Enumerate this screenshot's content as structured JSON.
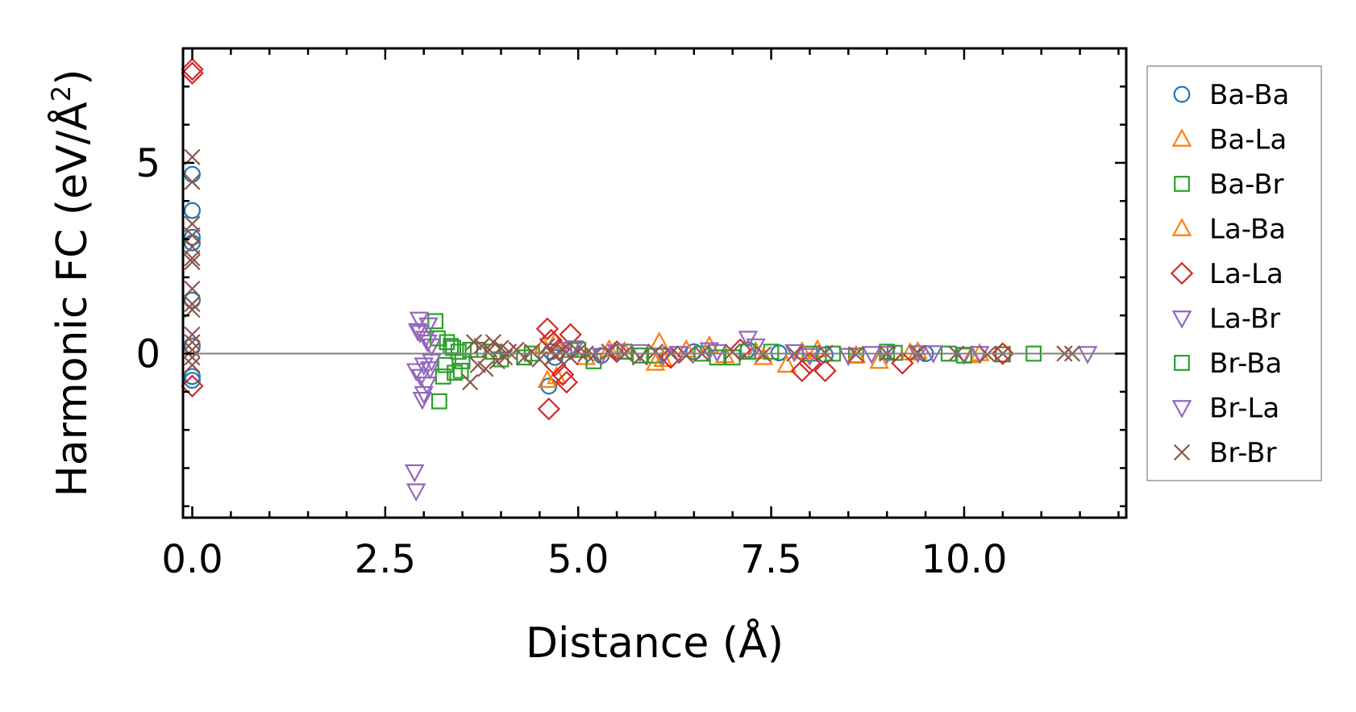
{
  "chart_data": {
    "type": "scatter",
    "title": "",
    "xlabel": "Distance (Å)",
    "ylabel_main": "Harmonic FC (eV/Å",
    "ylabel_sup": "2",
    "ylabel_close": ")",
    "xlim": [
      -0.12,
      12.1
    ],
    "ylim": [
      -4.3,
      8.0
    ],
    "xticks": [
      0.0,
      2.5,
      5.0,
      7.5,
      10.0
    ],
    "xtick_labels": [
      "0.0",
      "2.5",
      "5.0",
      "7.5",
      "10.0"
    ],
    "yticks": [
      0,
      5
    ],
    "ytick_labels": [
      "0",
      "5"
    ],
    "legend_position": "outside-right",
    "series": [
      {
        "name": "Ba-Ba",
        "marker": "circle",
        "color": "#1f77b4",
        "x": [
          0,
          0,
          0,
          0,
          0,
          0,
          0,
          0,
          4.62,
          4.65,
          4.7,
          5.3,
          6.5,
          7.2,
          7.6,
          8.2,
          9.5
        ],
        "y": [
          4.7,
          3.75,
          3.05,
          2.9,
          -0.6,
          -0.7,
          1.4,
          0.2,
          -0.85,
          0.05,
          -0.1,
          -0.05,
          0.05,
          0.1,
          0.02,
          -0.03,
          0.0
        ]
      },
      {
        "name": "Ba-La",
        "marker": "triangle-up",
        "color": "#ff7f0e",
        "x": [
          4.6,
          4.7,
          5.1,
          5.6,
          6.0,
          6.05,
          6.4,
          6.9,
          7.3,
          7.7,
          8.1,
          8.9,
          9.3,
          10.1
        ],
        "y": [
          -0.7,
          0.3,
          -0.1,
          0.05,
          -0.25,
          0.3,
          0.1,
          -0.05,
          0.05,
          -0.3,
          0.1,
          -0.2,
          0.02,
          -0.05
        ]
      },
      {
        "name": "Ba-Br",
        "marker": "square",
        "color": "#2ca02c",
        "x": [
          3.15,
          3.2,
          3.25,
          3.3,
          3.35,
          3.4,
          3.45,
          3.5,
          3.7,
          4.0,
          4.4,
          4.9,
          5.2,
          5.6,
          6.0,
          6.6,
          7.0,
          7.5,
          8.0,
          8.6,
          9.1,
          9.8,
          10.5,
          10.9
        ],
        "y": [
          0.85,
          -1.25,
          -0.6,
          0.3,
          0.2,
          -0.5,
          0.05,
          -0.2,
          0.1,
          -0.15,
          0.0,
          0.1,
          -0.2,
          0.05,
          -0.05,
          0.0,
          -0.1,
          0.05,
          0.0,
          -0.05,
          0.02,
          0.0,
          -0.02,
          0.0
        ]
      },
      {
        "name": "La-Ba",
        "marker": "triangle-up",
        "color": "#ff7f0e",
        "x": [
          4.55,
          4.72,
          5.4,
          6.1,
          6.7,
          7.4,
          7.9,
          8.6,
          9.4,
          10.2
        ],
        "y": [
          0.2,
          -0.6,
          0.1,
          -0.15,
          0.2,
          -0.1,
          0.05,
          -0.05,
          0.05,
          0.0
        ]
      },
      {
        "name": "La-La",
        "marker": "diamond",
        "color": "#d62728",
        "x": [
          0,
          0,
          0,
          4.6,
          4.62,
          4.65,
          4.7,
          4.75,
          4.8,
          4.85,
          4.9,
          5.5,
          6.2,
          7.1,
          7.9,
          8.0,
          8.2,
          9.2,
          10.5
        ],
        "y": [
          7.45,
          7.35,
          -0.85,
          0.65,
          -1.45,
          0.35,
          -0.3,
          0.1,
          -0.55,
          -0.75,
          0.5,
          0.05,
          -0.1,
          0.1,
          -0.45,
          -0.25,
          -0.45,
          -0.25,
          0.0
        ]
      },
      {
        "name": "La-Br",
        "marker": "triangle-down",
        "color": "#9467bd",
        "x": [
          2.88,
          2.9,
          2.92,
          2.94,
          2.96,
          2.98,
          3.0,
          3.02,
          3.04,
          3.06,
          3.08,
          3.1,
          4.9,
          5.3,
          5.8,
          6.3,
          6.8,
          7.2,
          7.8,
          8.5,
          9.0,
          9.6,
          10.0,
          11.6
        ],
        "y": [
          -3.1,
          -3.6,
          0.6,
          0.9,
          -0.6,
          -1.2,
          -0.3,
          0.4,
          -0.8,
          0.75,
          -0.4,
          0.2,
          0.1,
          -0.05,
          0.05,
          0.0,
          0.05,
          0.4,
          0.05,
          -0.05,
          0.0,
          0.02,
          -0.02,
          0.0
        ]
      },
      {
        "name": "Br-Ba",
        "marker": "square",
        "color": "#2ca02c",
        "x": [
          3.18,
          3.28,
          3.38,
          3.48,
          3.6,
          3.9,
          4.3,
          5.0,
          5.8,
          6.8,
          7.2,
          8.3,
          9.0,
          10.0
        ],
        "y": [
          0.4,
          -0.3,
          0.15,
          -0.45,
          0.1,
          0.05,
          -0.1,
          0.1,
          -0.05,
          -0.1,
          0.05,
          0.0,
          0.05,
          -0.05
        ]
      },
      {
        "name": "Br-La",
        "marker": "triangle-down",
        "color": "#9467bd",
        "x": [
          2.9,
          2.95,
          3.0,
          3.05,
          3.1,
          4.95,
          5.5,
          6.1,
          6.7,
          7.3,
          8.0,
          8.8,
          9.4,
          10.2
        ],
        "y": [
          -0.45,
          0.55,
          -1.05,
          0.3,
          -0.2,
          0.15,
          0.05,
          -0.05,
          0.1,
          0.2,
          -0.05,
          0.0,
          0.02,
          0.0
        ]
      },
      {
        "name": "Br-Br",
        "marker": "x",
        "color": "#8c564b",
        "x": [
          0,
          0,
          0,
          0,
          0,
          0,
          0,
          0,
          0,
          0,
          0,
          0,
          0,
          0,
          0,
          3.6,
          3.65,
          3.7,
          3.75,
          3.8,
          3.85,
          3.9,
          3.95,
          4.0,
          4.05,
          4.1,
          4.2,
          4.3,
          4.4,
          4.5,
          4.6,
          4.7,
          4.8,
          4.9,
          5.0,
          5.1,
          5.2,
          5.4,
          5.6,
          5.8,
          6.0,
          6.2,
          6.4,
          6.6,
          7.0,
          7.4,
          7.8,
          8.2,
          8.6,
          9.0,
          9.4,
          9.9,
          10.3,
          10.5,
          11.3,
          11.4
        ],
        "y": [
          5.15,
          4.5,
          3.4,
          3.1,
          2.8,
          2.5,
          2.4,
          1.7,
          1.3,
          1.15,
          0.5,
          0.3,
          0.1,
          -0.1,
          -0.3,
          -0.75,
          0.3,
          -0.3,
          0.2,
          -0.4,
          0.1,
          0.3,
          -0.2,
          0.15,
          -0.1,
          0.05,
          0.1,
          -0.1,
          0.05,
          -0.15,
          0.2,
          -0.05,
          0.1,
          -0.1,
          0.05,
          0.0,
          -0.05,
          0.05,
          0.0,
          -0.1,
          0.05,
          0.0,
          -0.05,
          0.0,
          0.05,
          -0.02,
          0.0,
          0.02,
          -0.02,
          0.0,
          0.02,
          0.0,
          -0.02,
          0.0,
          0.0,
          0.0
        ]
      }
    ]
  }
}
